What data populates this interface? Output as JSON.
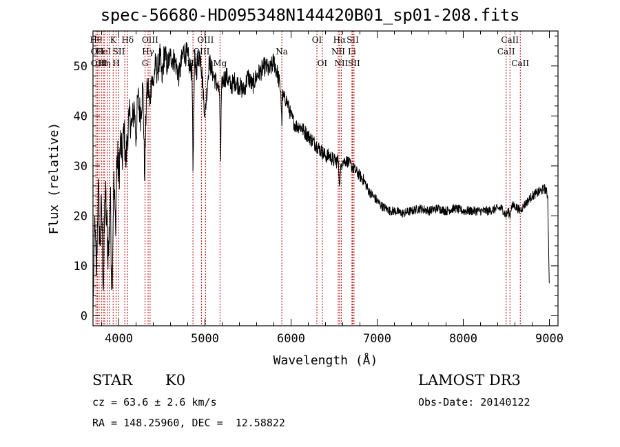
{
  "chart_data": {
    "type": "line",
    "title": "spec-56680-HD095348N144420B01_sp01-208.fits",
    "xlabel": "Wavelength (Å)",
    "ylabel": "Flux (relative)",
    "xlim": [
      3700,
      9100
    ],
    "ylim": [
      -2,
      57
    ],
    "x_ticks": [
      4000,
      5000,
      6000,
      7000,
      8000,
      9000
    ],
    "y_ticks": [
      0,
      10,
      20,
      30,
      40,
      50
    ],
    "grid": false,
    "series": [
      {
        "x": [
          3700,
          3720,
          3740,
          3760,
          3780,
          3800,
          3820,
          3840,
          3860,
          3880,
          3900,
          3920,
          3940,
          3960,
          3980,
          4000,
          4020,
          4040,
          4060,
          4080,
          4100,
          4120,
          4150,
          4180,
          4200,
          4220,
          4250,
          4280,
          4300,
          4320,
          4340,
          4360,
          4380,
          4400,
          4420,
          4450,
          4480,
          4500,
          4530,
          4560,
          4600,
          4650,
          4700,
          4750,
          4800,
          4830,
          4850,
          4861,
          4880,
          4900,
          4920,
          4950,
          5000,
          5050,
          5100,
          5150,
          5170,
          5183,
          5190,
          5200,
          5250,
          5300,
          5350,
          5400,
          5450,
          5500,
          5550,
          5600,
          5650,
          5700,
          5750,
          5800,
          5850,
          5880,
          5893,
          5900,
          5950,
          6000,
          6050,
          6100,
          6150,
          6200,
          6250,
          6300,
          6350,
          6400,
          6450,
          6500,
          6550,
          6563,
          6580,
          6600,
          6650,
          6700,
          6750,
          6800,
          6850,
          6900,
          6950,
          7000,
          7050,
          7100,
          7150,
          7200,
          7300,
          7400,
          7500,
          7600,
          7700,
          7800,
          7900,
          8000,
          8100,
          8200,
          8300,
          8400,
          8450,
          8498,
          8520,
          8542,
          8560,
          8600,
          8662,
          8700,
          8750,
          8800,
          8850,
          8900,
          8950,
          8980,
          9000
        ],
        "y": [
          0,
          20,
          8,
          26,
          14,
          22,
          5,
          25,
          18,
          12,
          24,
          6,
          27,
          18,
          32,
          28,
          35,
          31,
          38,
          30,
          36,
          40,
          38,
          42,
          35,
          44,
          40,
          46,
          27,
          44,
          46,
          42,
          48,
          46,
          50,
          49,
          52,
          47,
          53,
          50,
          52,
          51,
          48,
          53,
          52,
          49,
          50,
          29,
          51,
          49,
          52,
          52,
          40,
          51,
          48,
          46,
          44,
          31,
          44,
          47,
          48,
          46,
          47,
          46,
          45,
          48,
          46,
          48,
          49,
          50,
          49,
          51,
          48,
          45,
          38,
          44,
          43,
          40,
          38,
          38,
          37,
          36,
          35,
          34,
          33,
          32,
          32,
          31,
          31,
          26,
          30,
          31,
          31,
          30,
          29,
          28,
          27,
          25,
          24,
          23,
          22,
          21.5,
          21,
          21,
          20.5,
          21,
          21.5,
          21,
          21.5,
          21,
          21.5,
          21,
          21,
          21,
          21,
          21.5,
          21.5,
          20,
          21,
          20,
          22,
          22,
          21,
          22,
          23,
          24,
          24.5,
          25,
          25.5,
          24,
          5
        ],
        "noise": [
          3.5,
          0.6,
          4,
          5.5,
          6,
          5,
          6,
          6,
          5.5,
          5.5,
          6,
          6,
          5.5,
          5,
          5,
          5,
          4.5,
          4,
          4,
          4,
          4,
          3.5,
          3.5,
          3.5,
          3.5,
          3.5,
          3.5,
          3.5,
          3,
          3,
          3,
          3,
          3,
          3,
          3,
          3,
          3,
          3,
          3,
          2.5,
          2.5,
          2.5,
          2.5,
          2.5,
          2.5,
          2.5,
          2.5,
          1.5,
          2.5,
          2.5,
          2.5,
          2.5,
          2,
          2,
          2,
          2,
          1.5,
          1,
          1.5,
          2,
          2,
          2,
          2,
          2,
          2,
          2,
          2,
          2,
          2,
          2,
          2,
          2,
          2,
          1.5,
          1,
          1.5,
          1.5,
          1.5,
          1.5,
          1.5,
          1.5,
          1.5,
          1.5,
          1.5,
          1.5,
          1.5,
          1.5,
          1.5,
          1.5,
          1,
          1.2,
          1.2,
          1.2,
          1.2,
          1.2,
          1.2,
          1.2,
          1,
          1,
          1,
          0.9,
          0.9,
          0.9,
          0.9,
          0.9,
          0.9,
          0.9,
          0.9,
          0.9,
          0.9,
          0.9,
          0.9,
          0.9,
          0.9,
          0.9,
          0.9,
          0.9,
          0.9,
          0.9,
          0.9,
          0.9,
          0.9,
          0.9,
          0.9,
          0.9,
          0.9,
          1,
          1,
          1,
          1,
          0.5
        ]
      }
    ],
    "lines": [
      {
        "x": 3734,
        "label": "Hθ",
        "row": 0
      },
      {
        "x": 3750,
        "label": "OII",
        "row": 1
      },
      {
        "x": 3771,
        "label": "OIII",
        "row": 2
      },
      {
        "x": 3798,
        "label": "",
        "row": 0
      },
      {
        "x": 3820,
        "label": "HeI",
        "row": 1
      },
      {
        "x": 3835,
        "label": "Hη",
        "row": 2
      },
      {
        "x": 3869,
        "label": "",
        "row": 1
      },
      {
        "x": 3889,
        "label": "",
        "row": 1
      },
      {
        "x": 3934,
        "label": "K",
        "row": 0
      },
      {
        "x": 3969,
        "label": "H",
        "row": 2
      },
      {
        "x": 4000,
        "label": "SII",
        "row": 1
      },
      {
        "x": 4069,
        "label": "",
        "row": 1
      },
      {
        "x": 4102,
        "label": "Hδ",
        "row": 0
      },
      {
        "x": 4304,
        "label": "G",
        "row": 2
      },
      {
        "x": 4340,
        "label": "Hγ",
        "row": 1
      },
      {
        "x": 4363,
        "label": "OIII",
        "row": 0
      },
      {
        "x": 4861,
        "label": "Hβ",
        "row": 2
      },
      {
        "x": 4959,
        "label": "OIII",
        "row": 1
      },
      {
        "x": 5007,
        "label": "OIII",
        "row": 0
      },
      {
        "x": 5175,
        "label": "Mg",
        "row": 2
      },
      {
        "x": 5893,
        "label": "Na",
        "row": 1
      },
      {
        "x": 6300,
        "label": "OI",
        "row": 0
      },
      {
        "x": 6363,
        "label": "OI",
        "row": 2
      },
      {
        "x": 6548,
        "label": "NII",
        "row": 1
      },
      {
        "x": 6563,
        "label": "Hα",
        "row": 0
      },
      {
        "x": 6583,
        "label": "NII",
        "row": 2
      },
      {
        "x": 6707,
        "label": "Li",
        "row": 1
      },
      {
        "x": 6716,
        "label": "SII",
        "row": 0
      },
      {
        "x": 6731,
        "label": "SII",
        "row": 2
      },
      {
        "x": 8498,
        "label": "CaII",
        "row": 1
      },
      {
        "x": 8542,
        "label": "CaII",
        "row": 0
      },
      {
        "x": 8662,
        "label": "CaII",
        "row": 2
      }
    ]
  },
  "info": {
    "class": "STAR",
    "subclass": "K0",
    "survey": "LAMOST DR3",
    "cz": "cz = 63.6 ± 2.6 km/s",
    "obs_date": "Obs-Date: 20140122",
    "coords": "RA = 148.25960, DEC =  12.58822"
  }
}
